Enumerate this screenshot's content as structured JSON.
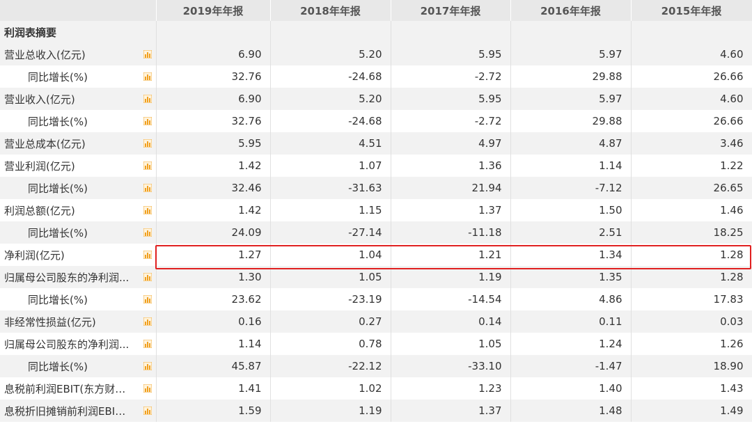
{
  "columns": [
    "",
    "2019年年报",
    "2018年年报",
    "2017年年报",
    "2016年年报",
    "2015年年报"
  ],
  "section_title": "利润表摘要",
  "rows": [
    {
      "label": "营业总收入(亿元)",
      "sub": false,
      "values": [
        "6.90",
        "5.20",
        "5.95",
        "5.97",
        "4.60"
      ]
    },
    {
      "label": "同比增长(%)",
      "sub": true,
      "values": [
        "32.76",
        "-24.68",
        "-2.72",
        "29.88",
        "26.66"
      ]
    },
    {
      "label": "营业收入(亿元)",
      "sub": false,
      "values": [
        "6.90",
        "5.20",
        "5.95",
        "5.97",
        "4.60"
      ]
    },
    {
      "label": "同比增长(%)",
      "sub": true,
      "values": [
        "32.76",
        "-24.68",
        "-2.72",
        "29.88",
        "26.66"
      ]
    },
    {
      "label": "营业总成本(亿元)",
      "sub": false,
      "values": [
        "5.95",
        "4.51",
        "4.97",
        "4.87",
        "3.46"
      ]
    },
    {
      "label": "营业利润(亿元)",
      "sub": false,
      "values": [
        "1.42",
        "1.07",
        "1.36",
        "1.14",
        "1.22"
      ]
    },
    {
      "label": "同比增长(%)",
      "sub": true,
      "values": [
        "32.46",
        "-31.63",
        "21.94",
        "-7.12",
        "26.65"
      ]
    },
    {
      "label": "利润总额(亿元)",
      "sub": false,
      "values": [
        "1.42",
        "1.15",
        "1.37",
        "1.50",
        "1.46"
      ]
    },
    {
      "label": "同比增长(%)",
      "sub": true,
      "values": [
        "24.09",
        "-27.14",
        "-11.18",
        "2.51",
        "18.25"
      ]
    },
    {
      "label": "净利润(亿元)",
      "sub": false,
      "values": [
        "1.27",
        "1.04",
        "1.21",
        "1.34",
        "1.28"
      ]
    },
    {
      "label": "归属母公司股东的净利润...",
      "sub": false,
      "values": [
        "1.30",
        "1.05",
        "1.19",
        "1.35",
        "1.28"
      ]
    },
    {
      "label": "同比增长(%)",
      "sub": true,
      "values": [
        "23.62",
        "-23.19",
        "-14.54",
        "4.86",
        "17.83"
      ]
    },
    {
      "label": "非经常性损益(亿元)",
      "sub": false,
      "values": [
        "0.16",
        "0.27",
        "0.14",
        "0.11",
        "0.03"
      ]
    },
    {
      "label": "归属母公司股东的净利润...",
      "sub": false,
      "values": [
        "1.14",
        "0.78",
        "1.05",
        "1.24",
        "1.26"
      ]
    },
    {
      "label": "同比增长(%)",
      "sub": true,
      "values": [
        "45.87",
        "-22.12",
        "-33.10",
        "-1.47",
        "18.90"
      ]
    },
    {
      "label": "息税前利润EBIT(东方财富...",
      "sub": false,
      "values": [
        "1.41",
        "1.02",
        "1.23",
        "1.40",
        "1.43"
      ]
    },
    {
      "label": "息税折旧摊销前利润EBIT...",
      "sub": false,
      "values": [
        "1.59",
        "1.19",
        "1.37",
        "1.48",
        "1.49"
      ]
    }
  ],
  "icons": {
    "row_chart": "bar-chart-icon"
  },
  "colors": {
    "highlight": "#e02020",
    "icon": "#f0a020",
    "header_bg": "#e8e8e8",
    "alt_row": "#f2f2f2"
  }
}
